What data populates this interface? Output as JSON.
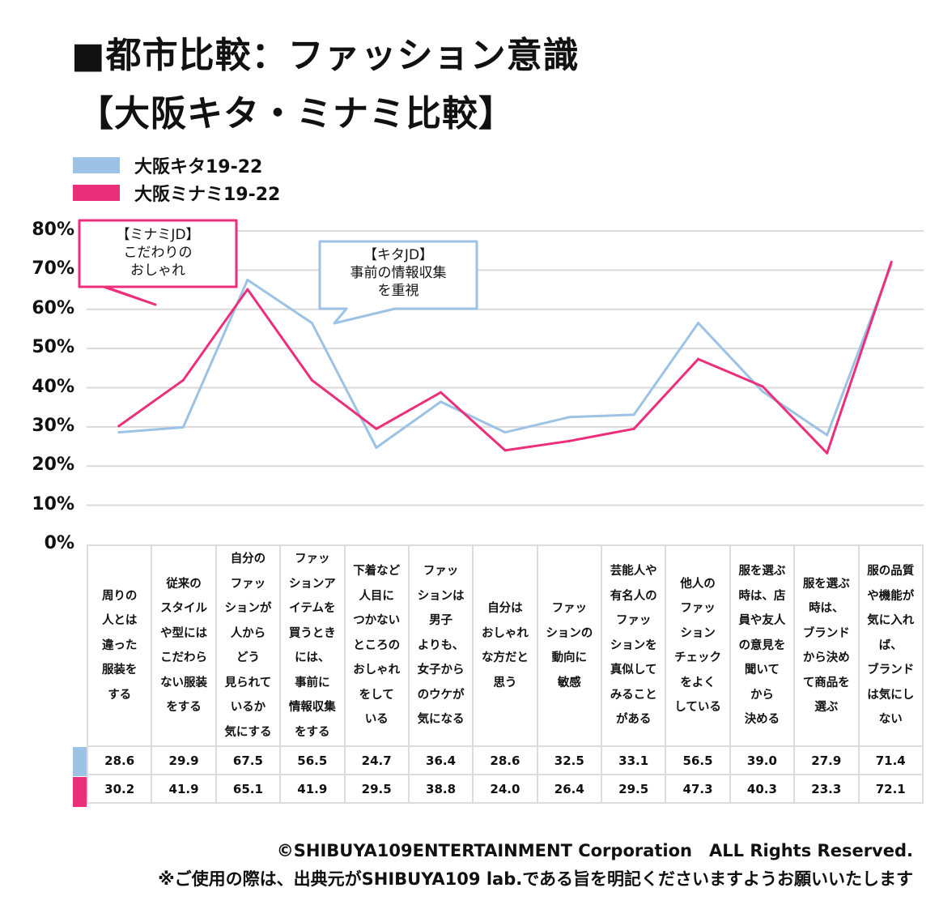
{
  "title_line1": "■都市比較：ファッション意識",
  "title_line2": "【大阪キタ・ミナミ比較】",
  "chart_data": {
    "type": "line",
    "title": "都市比較：ファッション意識【大阪キタ・ミナミ比較】",
    "ylim": [
      0,
      80
    ],
    "y_ticks": [
      "80%",
      "70%",
      "60%",
      "50%",
      "40%",
      "30%",
      "20%",
      "10%",
      "0%"
    ],
    "grid": true,
    "legend_position": "top-left",
    "categories": [
      "周りの\n人とは\n違った\n服装を\nする",
      "従来の\nスタイル\nや型には\nこだわら\nない服装\nをする",
      "自分の\nファッ\nションが\n人から\nどう\n見られて\nいるか\n気にする",
      "ファッ\nションア\nイテムを\n買うとき\nには、\n事前に\n情報収集\nをする",
      "下着など\n人目に\nつかない\nところの\nおしゃれ\nをして\nいる",
      "ファッ\nションは\n男子\nよりも、\n女子から\nのウケが\n気になる",
      "自分は\nおしゃれ\nな方だと\n思う",
      "ファッ\nションの\n動向に\n敏感",
      "芸能人や\n有名人の\nファッ\nションを\n真似して\nみること\nがある",
      "他人の\nファッ\nション\nチェック\nをよく\nしている",
      "服を選ぶ\n時は、店\n員や友人\nの意見を\n聞いて\nから\n決める",
      "服を選ぶ\n時は、\nブランド\nから決め\nて商品を\n選ぶ",
      "服の品質\nや機能が\n気に入れ\nば、\nブランド\nは気にし\nない"
    ],
    "series": [
      {
        "name": "大阪キタ19-22",
        "color": "#9cc2e5",
        "values": [
          28.6,
          29.9,
          67.5,
          56.5,
          24.7,
          36.4,
          28.6,
          32.5,
          33.1,
          56.5,
          39.0,
          27.9,
          71.4
        ],
        "labels": [
          "28.6",
          "29.9",
          "67.5",
          "56.5",
          "24.7",
          "36.4",
          "28.6",
          "32.5",
          "33.1",
          "56.5",
          "39.0",
          "27.9",
          "71.4"
        ]
      },
      {
        "name": "大阪ミナミ19-22",
        "color": "#ec2f7b",
        "values": [
          30.2,
          41.9,
          65.1,
          41.9,
          29.5,
          38.8,
          24.0,
          26.4,
          29.5,
          47.3,
          40.3,
          23.3,
          72.1
        ],
        "labels": [
          "30.2",
          "41.9",
          "65.1",
          "41.9",
          "29.5",
          "38.8",
          "24.0",
          "26.4",
          "29.5",
          "47.3",
          "40.3",
          "23.3",
          "72.1"
        ]
      }
    ],
    "annotations": [
      {
        "text": "【ミナミJD】\nこだわりの\nおしゃれ",
        "color": "#ec2f7b"
      },
      {
        "text": "【キタJD】\n事前の情報収集\nを重視",
        "color": "#9cc2e5"
      }
    ]
  },
  "footer": {
    "copyright": "©SHIBUYA109ENTERTAINMENT Corporation　ALL Rights Reserved.",
    "note": "※ご使用の際は、出典元がSHIBUYA109 lab.である旨を明記くださいますようお願いいたします"
  }
}
